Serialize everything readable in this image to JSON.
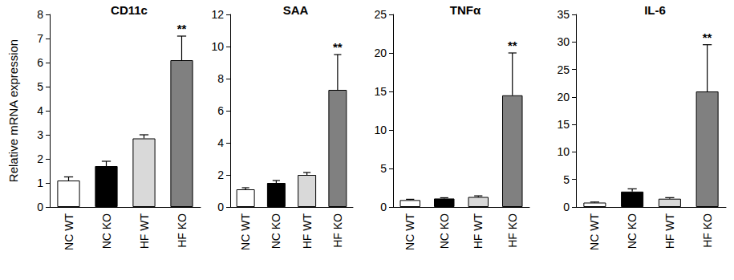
{
  "chart_data": [
    {
      "type": "bar",
      "title": "CD11c",
      "ylabel": "Relative mRNA expression",
      "categories": [
        "NC WT",
        "NC KO",
        "HF WT",
        "HF KO"
      ],
      "values": [
        1.1,
        1.7,
        2.85,
        6.1
      ],
      "errors": [
        0.15,
        0.2,
        0.15,
        1.0
      ],
      "colors": [
        "#ffffff",
        "#000000",
        "#d9d9d9",
        "#808080"
      ],
      "ylim": [
        0,
        8
      ],
      "yticks": [
        0,
        1,
        2,
        3,
        4,
        5,
        6,
        7,
        8
      ],
      "grid": false,
      "annotations": [
        {
          "text": "**",
          "category": "HF KO"
        }
      ]
    },
    {
      "type": "bar",
      "title": "SAA",
      "categories": [
        "NC WT",
        "NC KO",
        "HF WT",
        "HF KO"
      ],
      "values": [
        1.1,
        1.5,
        2.0,
        7.3
      ],
      "errors": [
        0.1,
        0.15,
        0.15,
        2.2
      ],
      "colors": [
        "#ffffff",
        "#000000",
        "#d9d9d9",
        "#808080"
      ],
      "ylim": [
        0,
        12
      ],
      "yticks": [
        0,
        2,
        4,
        6,
        8,
        10,
        12
      ],
      "grid": false,
      "annotations": [
        {
          "text": "**",
          "category": "HF KO"
        }
      ]
    },
    {
      "type": "bar",
      "title": "TNFα",
      "categories": [
        "NC WT",
        "NC KO",
        "HF WT",
        "HF KO"
      ],
      "values": [
        0.9,
        1.1,
        1.3,
        14.5
      ],
      "errors": [
        0.1,
        0.1,
        0.15,
        5.5
      ],
      "colors": [
        "#ffffff",
        "#000000",
        "#d9d9d9",
        "#808080"
      ],
      "ylim": [
        0,
        25
      ],
      "yticks": [
        0,
        5,
        10,
        15,
        20,
        25
      ],
      "grid": false,
      "annotations": [
        {
          "text": "**",
          "category": "HF KO"
        }
      ]
    },
    {
      "type": "bar",
      "title": "IL-6",
      "categories": [
        "NC WT",
        "NC KO",
        "HF WT",
        "HF KO"
      ],
      "values": [
        0.8,
        2.8,
        1.5,
        21
      ],
      "errors": [
        0.1,
        0.5,
        0.2,
        8.5
      ],
      "colors": [
        "#ffffff",
        "#000000",
        "#d9d9d9",
        "#808080"
      ],
      "ylim": [
        0,
        35
      ],
      "yticks": [
        0,
        5,
        10,
        15,
        20,
        25,
        30,
        35
      ],
      "grid": false,
      "annotations": [
        {
          "text": "**",
          "category": "HF KO"
        }
      ]
    }
  ]
}
